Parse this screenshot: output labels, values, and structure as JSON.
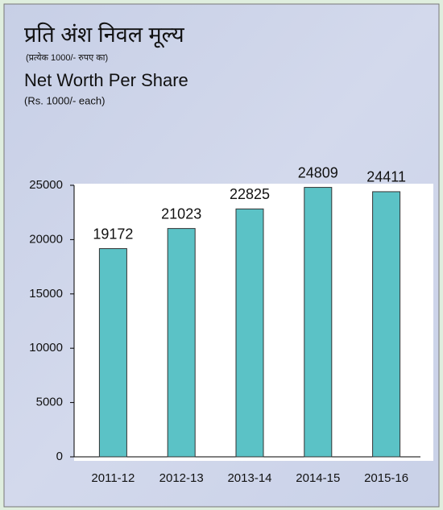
{
  "chart_data": {
    "type": "bar",
    "title_hindi": "प्रति अंश निवल मूल्य",
    "subtitle_hindi": "(प्रत्येक 1000/- रुपए का)",
    "title": "Net Worth Per Share",
    "subtitle": "(Rs. 1000/- each)",
    "categories": [
      "2011-12",
      "2012-13",
      "2013-14",
      "2014-15",
      "2015-16"
    ],
    "values": [
      19172,
      21023,
      22825,
      24809,
      24411
    ],
    "color": "#5bc2c6",
    "ylim": [
      0,
      25000
    ],
    "yticks": [
      0,
      5000,
      10000,
      15000,
      20000,
      25000
    ],
    "grid": false
  }
}
